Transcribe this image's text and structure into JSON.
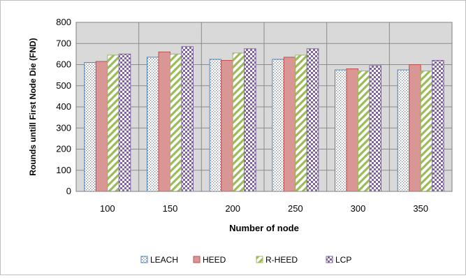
{
  "chart_data": {
    "type": "bar",
    "title": "",
    "xlabel": "Number of node",
    "ylabel": "Rounds untill First Node Die (FND)",
    "categories": [
      "100",
      "150",
      "200",
      "250",
      "300",
      "350"
    ],
    "ylim": [
      0,
      800
    ],
    "yticks": [
      0,
      100,
      200,
      300,
      400,
      500,
      600,
      700,
      800
    ],
    "grid": true,
    "legend_position": "bottom",
    "series": [
      {
        "name": "LEACH",
        "pattern": "dots",
        "color": "#4f81bd",
        "values": [
          610,
          635,
          625,
          625,
          575,
          575
        ]
      },
      {
        "name": "HEED",
        "pattern": "solid",
        "color": "#c0504d",
        "values": [
          615,
          660,
          620,
          635,
          580,
          600
        ]
      },
      {
        "name": "R-HEED",
        "pattern": "diagonal",
        "color": "#9bbb59",
        "values": [
          645,
          650,
          655,
          645,
          570,
          570
        ]
      },
      {
        "name": "LCP",
        "pattern": "checker",
        "color": "#8064a2",
        "values": [
          650,
          685,
          675,
          675,
          595,
          620
        ]
      }
    ]
  }
}
